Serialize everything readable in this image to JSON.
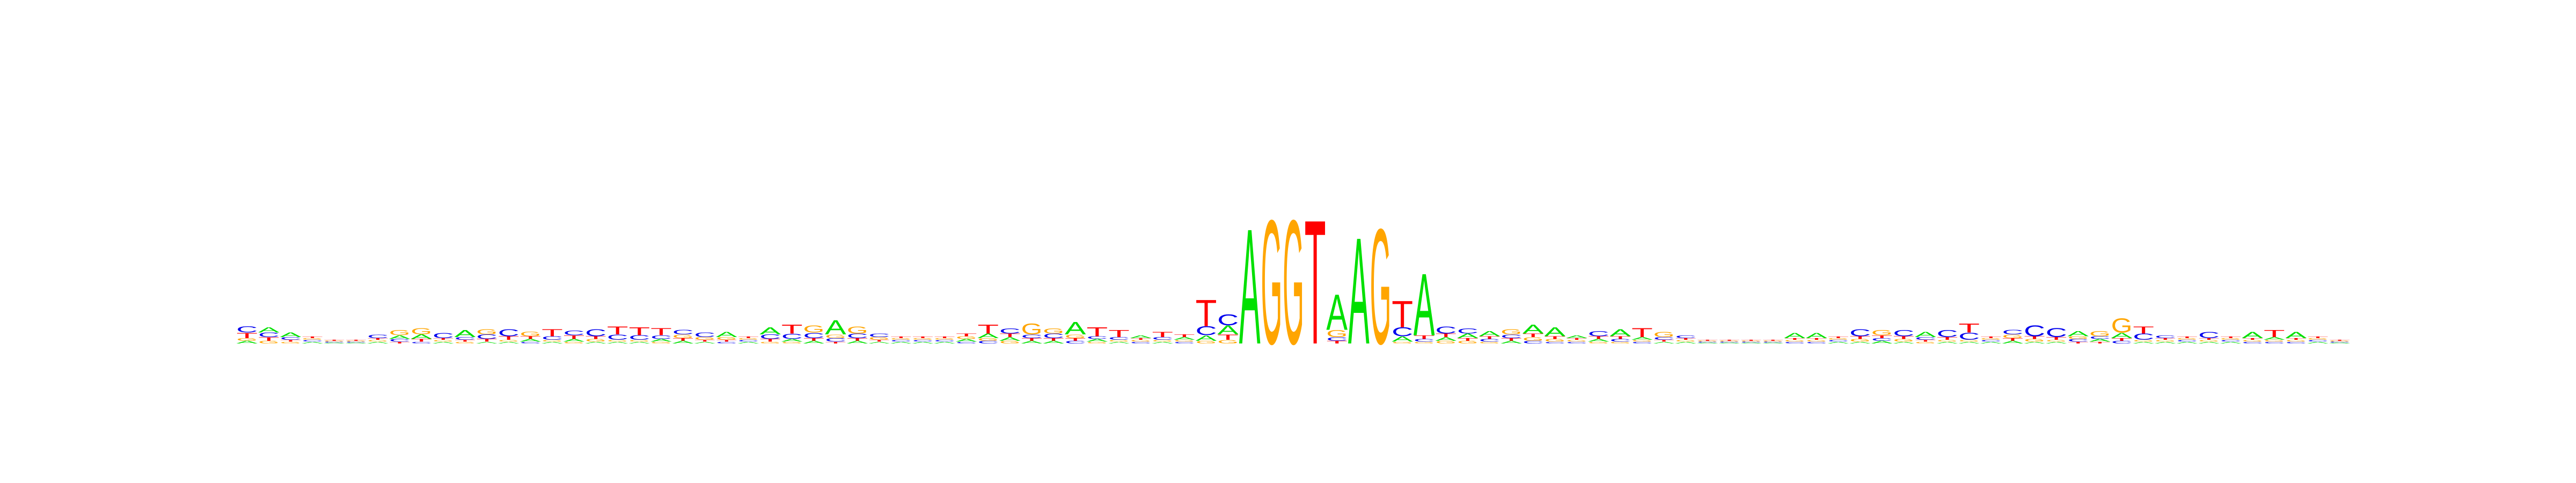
{
  "chart_data": {
    "type": "sequence-logo",
    "title": "",
    "xlabel": "",
    "ylabel": "",
    "alphabet": [
      "A",
      "C",
      "G",
      "T"
    ],
    "colors": {
      "A": "#00e000",
      "C": "#0000ee",
      "G": "#ffa500",
      "T": "#ff0000"
    },
    "positions": [
      {
        "A": 0.03,
        "C": 0.07,
        "G": 0.03,
        "T": 0.06
      },
      {
        "A": 0.06,
        "C": 0.05,
        "G": 0.03,
        "T": 0.04
      },
      {
        "A": 0.05,
        "C": 0.03,
        "G": 0.02,
        "T": 0.02
      },
      {
        "A": 0.02,
        "C": 0.02,
        "G": 0.02,
        "T": 0.02
      },
      {
        "A": 0.01,
        "C": 0.01,
        "G": 0.01,
        "T": 0.01
      },
      {
        "A": 0.01,
        "C": 0.01,
        "G": 0.01,
        "T": 0.01
      },
      {
        "A": 0.02,
        "C": 0.04,
        "G": 0.02,
        "T": 0.02
      },
      {
        "A": 0.04,
        "C": 0.03,
        "G": 0.06,
        "T": 0.02
      },
      {
        "A": 0.05,
        "C": 0.02,
        "G": 0.07,
        "T": 0.03
      },
      {
        "A": 0.02,
        "C": 0.06,
        "G": 0.02,
        "T": 0.02
      },
      {
        "A": 0.08,
        "C": 0.03,
        "G": 0.02,
        "T": 0.02
      },
      {
        "A": 0.02,
        "C": 0.05,
        "G": 0.06,
        "T": 0.03
      },
      {
        "A": 0.02,
        "C": 0.08,
        "G": 0.02,
        "T": 0.04
      },
      {
        "A": 0.03,
        "C": 0.02,
        "G": 0.05,
        "T": 0.03
      },
      {
        "A": 0.02,
        "C": 0.04,
        "G": 0.02,
        "T": 0.08
      },
      {
        "A": 0.03,
        "C": 0.05,
        "G": 0.02,
        "T": 0.04
      },
      {
        "A": 0.02,
        "C": 0.08,
        "G": 0.03,
        "T": 0.03
      },
      {
        "A": 0.02,
        "C": 0.06,
        "G": 0.02,
        "T": 0.09
      },
      {
        "A": 0.02,
        "C": 0.05,
        "G": 0.02,
        "T": 0.09
      },
      {
        "A": 0.03,
        "C": 0.04,
        "G": 0.02,
        "T": 0.08
      },
      {
        "A": 0.03,
        "C": 0.05,
        "G": 0.04,
        "T": 0.03
      },
      {
        "A": 0.02,
        "C": 0.05,
        "G": 0.03,
        "T": 0.02
      },
      {
        "A": 0.06,
        "C": 0.02,
        "G": 0.03,
        "T": 0.02
      },
      {
        "A": 0.02,
        "C": 0.02,
        "G": 0.02,
        "T": 0.02
      },
      {
        "A": 0.08,
        "C": 0.05,
        "G": 0.02,
        "T": 0.03
      },
      {
        "A": 0.03,
        "C": 0.06,
        "G": 0.02,
        "T": 0.1
      },
      {
        "A": 0.03,
        "C": 0.06,
        "G": 0.08,
        "T": 0.03
      },
      {
        "A": 0.16,
        "C": 0.04,
        "G": 0.04,
        "T": 0.02
      },
      {
        "A": 0.03,
        "C": 0.05,
        "G": 0.08,
        "T": 0.03
      },
      {
        "A": 0.02,
        "C": 0.04,
        "G": 0.03,
        "T": 0.02
      },
      {
        "A": 0.02,
        "C": 0.02,
        "G": 0.02,
        "T": 0.02
      },
      {
        "A": 0.02,
        "C": 0.02,
        "G": 0.02,
        "T": 0.02
      },
      {
        "A": 0.02,
        "C": 0.02,
        "G": 0.02,
        "T": 0.02
      },
      {
        "A": 0.03,
        "C": 0.02,
        "G": 0.03,
        "T": 0.03
      },
      {
        "A": 0.05,
        "C": 0.03,
        "G": 0.03,
        "T": 0.1
      },
      {
        "A": 0.04,
        "C": 0.06,
        "G": 0.03,
        "T": 0.04
      },
      {
        "A": 0.03,
        "C": 0.04,
        "G": 0.12,
        "T": 0.03
      },
      {
        "A": 0.03,
        "C": 0.05,
        "G": 0.06,
        "T": 0.03
      },
      {
        "A": 0.14,
        "C": 0.03,
        "G": 0.04,
        "T": 0.03
      },
      {
        "A": 0.03,
        "C": 0.03,
        "G": 0.02,
        "T": 0.1
      },
      {
        "A": 0.02,
        "C": 0.03,
        "G": 0.02,
        "T": 0.08
      },
      {
        "A": 0.03,
        "C": 0.02,
        "G": 0.02,
        "T": 0.02
      },
      {
        "A": 0.02,
        "C": 0.03,
        "G": 0.02,
        "T": 0.06
      },
      {
        "A": 0.03,
        "C": 0.02,
        "G": 0.02,
        "T": 0.03
      },
      {
        "A": 0.06,
        "C": 0.1,
        "G": 0.03,
        "T": 0.3
      },
      {
        "A": 0.1,
        "C": 0.12,
        "G": 0.04,
        "T": 0.06
      },
      {
        "A": 1.3,
        "C": 0.0,
        "G": 0.0,
        "T": 0.0
      },
      {
        "A": 0.0,
        "C": 0.0,
        "G": 1.4,
        "T": 0.0
      },
      {
        "A": 0.0,
        "C": 0.0,
        "G": 1.4,
        "T": 0.0
      },
      {
        "A": 0.0,
        "C": 0.0,
        "G": 0.0,
        "T": 1.4
      },
      {
        "A": 0.4,
        "C": 0.04,
        "G": 0.08,
        "T": 0.03
      },
      {
        "A": 1.2,
        "C": 0.0,
        "G": 0.0,
        "T": 0.0
      },
      {
        "A": 0.0,
        "C": 0.0,
        "G": 1.3,
        "T": 0.0
      },
      {
        "A": 0.06,
        "C": 0.1,
        "G": 0.02,
        "T": 0.3
      },
      {
        "A": 0.7,
        "C": 0.03,
        "G": 0.02,
        "T": 0.04
      },
      {
        "A": 0.04,
        "C": 0.08,
        "G": 0.03,
        "T": 0.04
      },
      {
        "A": 0.05,
        "C": 0.06,
        "G": 0.03,
        "T": 0.03
      },
      {
        "A": 0.06,
        "C": 0.03,
        "G": 0.02,
        "T": 0.03
      },
      {
        "A": 0.03,
        "C": 0.04,
        "G": 0.06,
        "T": 0.03
      },
      {
        "A": 0.1,
        "C": 0.03,
        "G": 0.04,
        "T": 0.04
      },
      {
        "A": 0.1,
        "C": 0.02,
        "G": 0.03,
        "T": 0.03
      },
      {
        "A": 0.03,
        "C": 0.02,
        "G": 0.02,
        "T": 0.02
      },
      {
        "A": 0.03,
        "C": 0.06,
        "G": 0.02,
        "T": 0.03
      },
      {
        "A": 0.08,
        "C": 0.03,
        "G": 0.02,
        "T": 0.03
      },
      {
        "A": 0.03,
        "C": 0.02,
        "G": 0.02,
        "T": 0.1
      },
      {
        "A": 0.02,
        "C": 0.03,
        "G": 0.06,
        "T": 0.02
      },
      {
        "A": 0.02,
        "C": 0.03,
        "G": 0.02,
        "T": 0.02
      },
      {
        "A": 0.01,
        "C": 0.01,
        "G": 0.01,
        "T": 0.01
      },
      {
        "A": 0.01,
        "C": 0.01,
        "G": 0.01,
        "T": 0.01
      },
      {
        "A": 0.01,
        "C": 0.01,
        "G": 0.01,
        "T": 0.01
      },
      {
        "A": 0.01,
        "C": 0.01,
        "G": 0.01,
        "T": 0.01
      },
      {
        "A": 0.06,
        "C": 0.02,
        "G": 0.02,
        "T": 0.02
      },
      {
        "A": 0.06,
        "C": 0.02,
        "G": 0.02,
        "T": 0.02
      },
      {
        "A": 0.02,
        "C": 0.02,
        "G": 0.02,
        "T": 0.02
      },
      {
        "A": 0.02,
        "C": 0.08,
        "G": 0.03,
        "T": 0.03
      },
      {
        "A": 0.03,
        "C": 0.03,
        "G": 0.06,
        "T": 0.03
      },
      {
        "A": 0.02,
        "C": 0.07,
        "G": 0.03,
        "T": 0.03
      },
      {
        "A": 0.06,
        "C": 0.03,
        "G": 0.02,
        "T": 0.02
      },
      {
        "A": 0.02,
        "C": 0.08,
        "G": 0.02,
        "T": 0.03
      },
      {
        "A": 0.02,
        "C": 0.08,
        "G": 0.02,
        "T": 0.1
      },
      {
        "A": 0.02,
        "C": 0.02,
        "G": 0.02,
        "T": 0.02
      },
      {
        "A": 0.03,
        "C": 0.05,
        "G": 0.04,
        "T": 0.03
      },
      {
        "A": 0.02,
        "C": 0.12,
        "G": 0.03,
        "T": 0.03
      },
      {
        "A": 0.02,
        "C": 0.1,
        "G": 0.02,
        "T": 0.03
      },
      {
        "A": 0.06,
        "C": 0.03,
        "G": 0.03,
        "T": 0.02
      },
      {
        "A": 0.03,
        "C": 0.03,
        "G": 0.06,
        "T": 0.02
      },
      {
        "A": 0.06,
        "C": 0.03,
        "G": 0.16,
        "T": 0.03
      },
      {
        "A": 0.02,
        "C": 0.07,
        "G": 0.02,
        "T": 0.08
      },
      {
        "A": 0.02,
        "C": 0.03,
        "G": 0.02,
        "T": 0.02
      },
      {
        "A": 0.02,
        "C": 0.02,
        "G": 0.02,
        "T": 0.02
      },
      {
        "A": 0.02,
        "C": 0.07,
        "G": 0.02,
        "T": 0.02
      },
      {
        "A": 0.02,
        "C": 0.02,
        "G": 0.02,
        "T": 0.02
      },
      {
        "A": 0.07,
        "C": 0.02,
        "G": 0.02,
        "T": 0.02
      },
      {
        "A": 0.03,
        "C": 0.02,
        "G": 0.02,
        "T": 0.08
      },
      {
        "A": 0.07,
        "C": 0.02,
        "G": 0.02,
        "T": 0.02
      },
      {
        "A": 0.02,
        "C": 0.02,
        "G": 0.02,
        "T": 0.02
      },
      {
        "A": 0.01,
        "C": 0.01,
        "G": 0.01,
        "T": 0.01
      }
    ]
  }
}
